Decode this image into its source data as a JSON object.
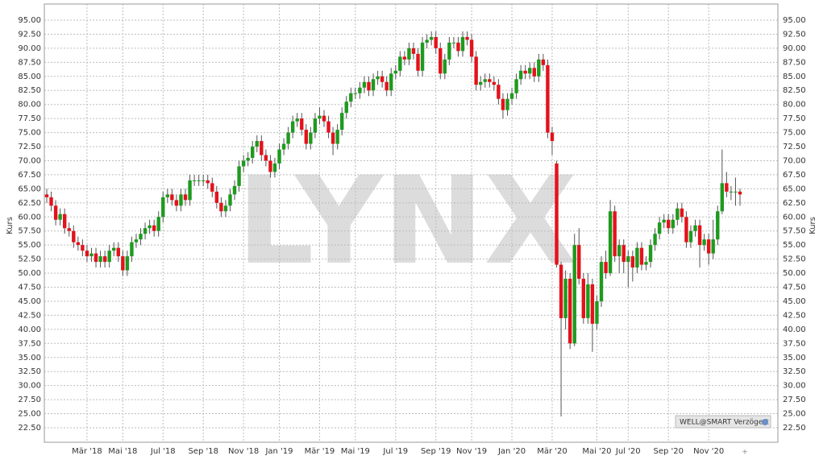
{
  "chart_data": {
    "type": "candlestick",
    "y_label": "Kurs",
    "watermark": "LYNX",
    "source_badge": "WELL@SMART Verzögert",
    "up_color": "#1e9a1e",
    "down_color": "#e3121b",
    "grid": true,
    "ylim": [
      22.5,
      95
    ],
    "yticks": [
      {
        "value": 22.5,
        "label": "22.50"
      },
      {
        "value": 25,
        "label": "25.00"
      },
      {
        "value": 27.5,
        "label": "27.50"
      },
      {
        "value": 30,
        "label": "30.00"
      },
      {
        "value": 32.5,
        "label": "32.50"
      },
      {
        "value": 35,
        "label": "35.00"
      },
      {
        "value": 37.5,
        "label": "37.50"
      },
      {
        "value": 40,
        "label": "40.00"
      },
      {
        "value": 42.5,
        "label": "42.50"
      },
      {
        "value": 45,
        "label": "45.00"
      },
      {
        "value": 47.5,
        "label": "47.50"
      },
      {
        "value": 50,
        "label": "50.00"
      },
      {
        "value": 52.5,
        "label": "52.50"
      },
      {
        "value": 55,
        "label": "55.00"
      },
      {
        "value": 57.5,
        "label": "57.50"
      },
      {
        "value": 60,
        "label": "60.00"
      },
      {
        "value": 62.5,
        "label": "62.50"
      },
      {
        "value": 65,
        "label": "65.00"
      },
      {
        "value": 67.5,
        "label": "67.50"
      },
      {
        "value": 70,
        "label": "70.00"
      },
      {
        "value": 72.5,
        "label": "72.50"
      },
      {
        "value": 75,
        "label": "75.00"
      },
      {
        "value": 77.5,
        "label": "77.50"
      },
      {
        "value": 80,
        "label": "80.00"
      },
      {
        "value": 82.5,
        "label": "82.50"
      },
      {
        "value": 85,
        "label": "85.00"
      },
      {
        "value": 87.5,
        "label": "87.50"
      },
      {
        "value": 90,
        "label": "90.00"
      },
      {
        "value": 92.5,
        "label": "92.50"
      },
      {
        "value": 95,
        "label": "95.00"
      }
    ],
    "categories": [
      null,
      null,
      null,
      null,
      null,
      null,
      null,
      null,
      null,
      "Mär '18",
      null,
      null,
      null,
      null,
      null,
      null,
      null,
      "Mai '18",
      null,
      null,
      null,
      null,
      null,
      null,
      null,
      null,
      "Jul '18",
      null,
      null,
      null,
      null,
      null,
      null,
      null,
      null,
      "Sep '18",
      null,
      null,
      null,
      null,
      null,
      null,
      null,
      null,
      "Nov '18",
      null,
      null,
      null,
      null,
      null,
      null,
      null,
      "Jan '19",
      null,
      null,
      null,
      null,
      null,
      null,
      null,
      null,
      "Mär '19",
      null,
      null,
      null,
      null,
      null,
      null,
      null,
      "Mai '19",
      null,
      null,
      null,
      null,
      null,
      null,
      null,
      null,
      "Jul '19",
      null,
      null,
      null,
      null,
      null,
      null,
      null,
      null,
      "Sep '19",
      null,
      null,
      null,
      null,
      null,
      null,
      null,
      "Nov '19",
      null,
      null,
      null,
      null,
      null,
      null,
      null,
      null,
      "Jan '20",
      null,
      null,
      null,
      null,
      null,
      null,
      null,
      null,
      "Mär '20",
      null,
      null,
      null,
      null,
      null,
      null,
      null,
      null,
      null,
      "Mai '20",
      null,
      null,
      null,
      null,
      null,
      null,
      "Jul '20",
      null,
      null,
      null,
      null,
      null,
      null,
      null,
      null,
      "Sep '20",
      null,
      null,
      null,
      null,
      null,
      null,
      null,
      null,
      "Nov '20",
      null,
      null,
      null,
      null,
      null,
      null,
      null
    ],
    "open": [
      64,
      63.5,
      62,
      59.5,
      60.5,
      58,
      57.5,
      55.5,
      55,
      54,
      53,
      53.5,
      52,
      53,
      52,
      54,
      54.5,
      53,
      50.5,
      53,
      55.5,
      56,
      57,
      58,
      58.5,
      57.5,
      60,
      63.5,
      64,
      63,
      62,
      64,
      63,
      66.5,
      66.5,
      66.5,
      66.5,
      66,
      64.5,
      62.5,
      61,
      62,
      64,
      65.5,
      69,
      70,
      70.5,
      72.5,
      73.5,
      71,
      70,
      68,
      69.5,
      72,
      73,
      75,
      77,
      77.5,
      75.5,
      73,
      75,
      77.5,
      78,
      77,
      75,
      73,
      75.5,
      78.5,
      80.5,
      82,
      82,
      83,
      84,
      82.5,
      84.5,
      85,
      84,
      82.5,
      85.5,
      86,
      88.5,
      88,
      90,
      89,
      86,
      91,
      91.5,
      92,
      90,
      85.5,
      88,
      91,
      91,
      89.5,
      92,
      91.5,
      88.5,
      83.5,
      84,
      84.5,
      84,
      83.5,
      81,
      79,
      81,
      82,
      84.5,
      86,
      85.5,
      86.5,
      85,
      88,
      87,
      75,
      69.5,
      51.5,
      42,
      49,
      37.5,
      55,
      49,
      42,
      48,
      41,
      45,
      52,
      50,
      61,
      53,
      55,
      52,
      53,
      51,
      54.5,
      51.5,
      52,
      55,
      57,
      59,
      59.5,
      58,
      59.5,
      61.5,
      60,
      55.5,
      57.5,
      58.5,
      55,
      56,
      53.5,
      56,
      61,
      66,
      64.5,
      64.5,
      64.5
    ],
    "high": [
      65,
      64.5,
      63,
      61.5,
      61.5,
      59,
      58.5,
      56.5,
      56,
      55,
      54.5,
      54.5,
      54,
      54,
      55,
      55.5,
      55.5,
      54,
      54,
      56.5,
      57,
      58,
      59,
      59.5,
      59.5,
      61,
      64.5,
      65,
      65,
      64,
      65,
      65,
      67.5,
      67.5,
      67.5,
      67.5,
      67.5,
      67,
      65.5,
      63.5,
      63,
      65,
      66.5,
      70,
      71,
      71.5,
      73.5,
      74.5,
      74.5,
      72,
      71,
      70.5,
      73,
      74,
      76,
      78,
      78.5,
      78.5,
      76.5,
      76,
      78.5,
      79.5,
      79,
      78,
      76,
      76.5,
      79.5,
      81.5,
      83,
      83,
      84,
      85,
      85,
      85.5,
      86,
      86,
      85,
      86.5,
      87,
      89.5,
      89.5,
      91,
      91,
      90,
      92,
      92.5,
      93,
      93,
      91,
      89,
      92,
      92,
      92,
      93,
      93,
      92.5,
      89.5,
      85,
      85.5,
      85.5,
      85,
      84.5,
      82,
      82,
      83,
      85.5,
      87,
      87,
      87.5,
      87.5,
      89,
      89,
      88,
      76,
      70,
      52,
      50.5,
      50,
      57,
      58,
      50,
      50,
      49,
      46,
      53,
      54,
      63,
      62,
      56,
      56,
      54,
      54,
      55.5,
      55.5,
      53,
      56,
      58,
      60,
      60.5,
      60.5,
      60.5,
      62.5,
      62.5,
      61,
      58.5,
      59.5,
      59.5,
      57,
      57,
      59.5,
      62,
      72,
      68,
      65.5,
      67,
      65
    ],
    "low": [
      62.5,
      61,
      58.5,
      58.5,
      57,
      56.5,
      54.5,
      54,
      53,
      52,
      52,
      51,
      51,
      51,
      51,
      53,
      52,
      49.5,
      49.5,
      52,
      54.5,
      55,
      56,
      57,
      56.5,
      56.5,
      59,
      62.5,
      62,
      61,
      61,
      62,
      62,
      65.5,
      65.5,
      65.5,
      65,
      63.5,
      61.5,
      60,
      60,
      61,
      63,
      64.5,
      68,
      69,
      69.5,
      71.5,
      70,
      69,
      67,
      67,
      68.5,
      71,
      72,
      74,
      76,
      74.5,
      72,
      72,
      74,
      76.5,
      76,
      74,
      71,
      72,
      74.5,
      77.5,
      79.5,
      81,
      81,
      82,
      81.5,
      81.5,
      83.5,
      83,
      81.5,
      81.5,
      84.5,
      85,
      87,
      87,
      88,
      85,
      85,
      90,
      90.5,
      89,
      84.5,
      84.5,
      87,
      90,
      88.5,
      88.5,
      90.5,
      87.5,
      82.5,
      82.5,
      83,
      83,
      82.5,
      80,
      77.5,
      78,
      80,
      81,
      83.5,
      84.5,
      84.5,
      84,
      84,
      86,
      74,
      71,
      51,
      24.5,
      40,
      36.5,
      37,
      48,
      41,
      41,
      36,
      40,
      44,
      49,
      49.5,
      52,
      50,
      50,
      47.5,
      48.5,
      50,
      50.5,
      50.5,
      51,
      54,
      56,
      58,
      57,
      57,
      58.5,
      59,
      54.5,
      54.5,
      56.5,
      51,
      54,
      51.5,
      52.5,
      55,
      60.5,
      63.5,
      63,
      62,
      62
    ],
    "close": [
      63.5,
      62,
      59.5,
      60.5,
      58,
      57.5,
      55.5,
      55,
      54,
      53,
      53.5,
      52,
      53,
      52,
      54,
      54.5,
      53,
      50.5,
      53,
      55.5,
      56,
      57,
      58,
      58.5,
      57.5,
      60,
      63.5,
      64,
      63,
      62,
      64,
      63,
      66.5,
      66.5,
      66.5,
      66.5,
      66,
      64.5,
      62.5,
      61,
      62,
      64,
      65.5,
      69,
      70,
      70.5,
      72.5,
      73.5,
      71,
      70,
      68,
      69.5,
      72,
      73,
      75,
      77,
      77.5,
      75.5,
      73,
      75,
      77.5,
      78,
      77,
      75,
      73,
      75.5,
      78.5,
      80.5,
      82,
      82,
      83,
      84,
      82.5,
      84.5,
      85,
      84,
      82.5,
      85.5,
      86,
      88.5,
      88,
      90,
      89,
      86,
      91,
      91.5,
      92,
      90,
      85.5,
      88,
      91,
      91,
      89.5,
      92,
      91.5,
      88.5,
      83.5,
      84,
      84.5,
      84,
      83.5,
      81,
      79,
      81,
      82,
      84.5,
      86,
      85.5,
      86.5,
      85,
      88,
      87,
      75,
      73.5,
      51.5,
      42,
      49,
      37.5,
      55,
      49,
      42,
      48,
      41,
      45,
      52,
      50,
      61,
      53,
      55,
      52,
      53,
      51,
      54.5,
      51.5,
      52,
      55,
      57,
      59,
      59.5,
      58,
      59.5,
      61.5,
      60,
      55.5,
      57.5,
      58.5,
      55,
      56,
      53.5,
      56,
      61,
      66,
      64.5,
      64.5,
      64.5,
      64
    ]
  }
}
